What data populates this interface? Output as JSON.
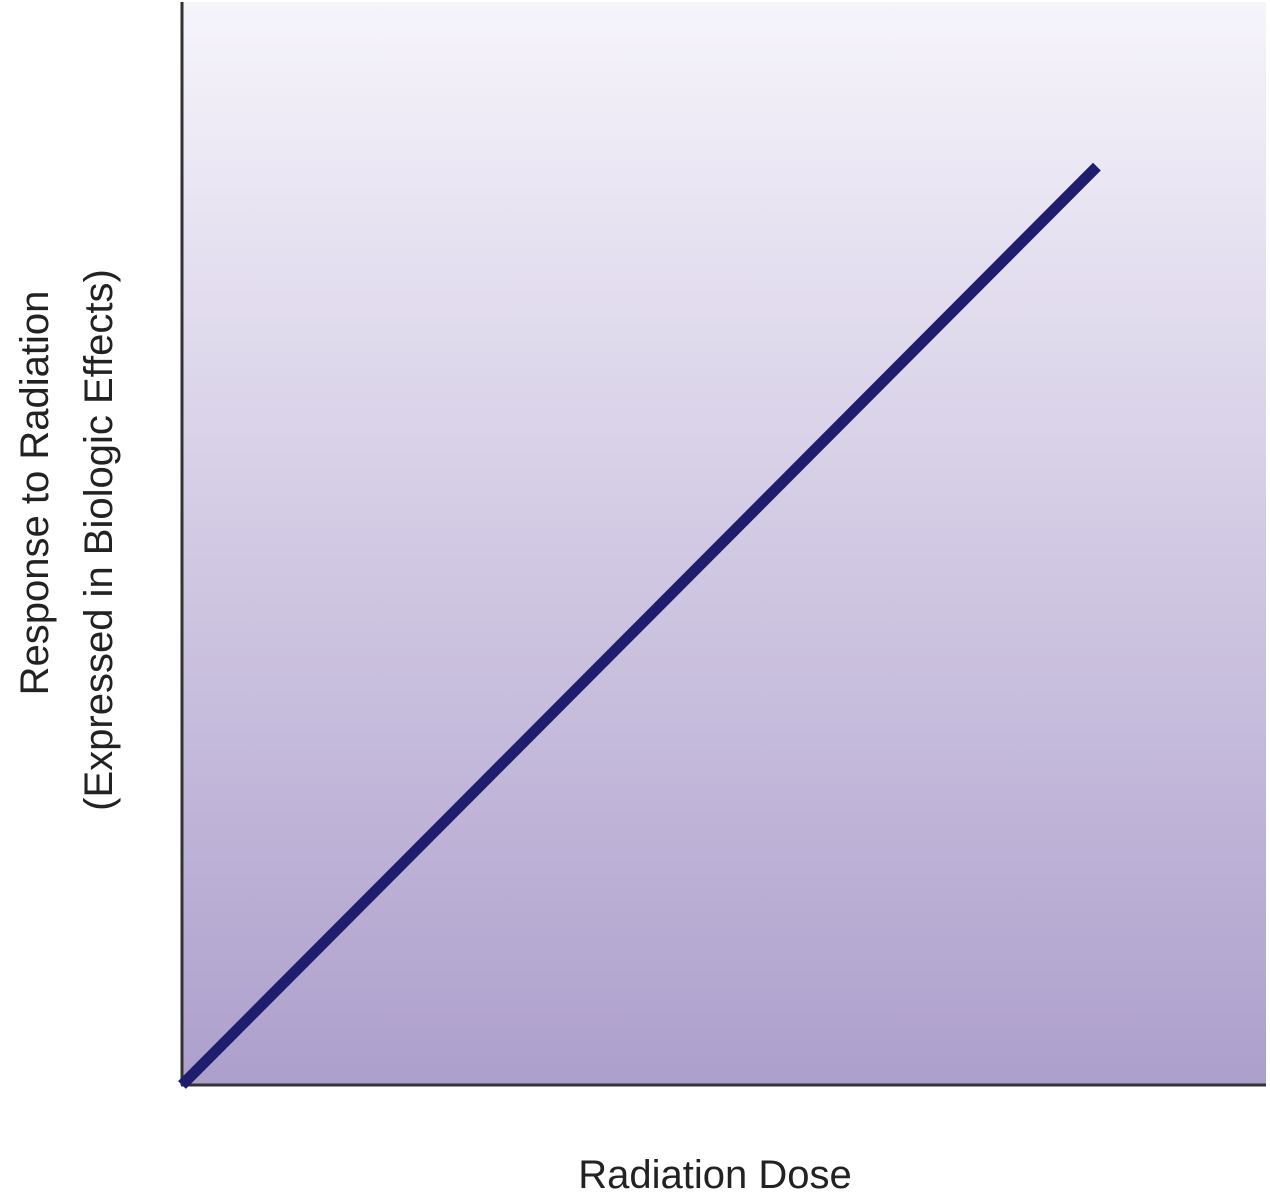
{
  "chart_data": {
    "type": "line",
    "title": "",
    "xlabel": "Radiation Dose",
    "ylabel_lines": [
      "Response to Radiation",
      "(Expressed in Biologic Effects)"
    ],
    "xlim": [
      0,
      100
    ],
    "ylim": [
      0,
      100
    ],
    "grid": false,
    "series": [
      {
        "x": [
          0,
          84.4
        ],
        "y": [
          0,
          84.8
        ],
        "color": "#1f1d6e"
      }
    ],
    "colors": {
      "background_top": "#f6f4fb",
      "background_bottom": "#ad9fcc",
      "axis": "#333333"
    }
  }
}
